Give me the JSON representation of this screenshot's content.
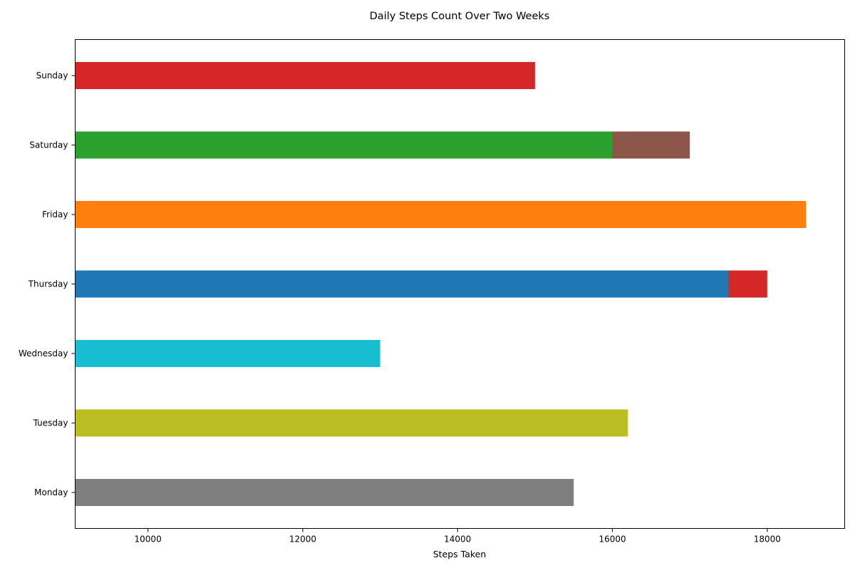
{
  "chart_data": {
    "type": "bar",
    "orientation": "horizontal",
    "title": "Daily Steps Count Over Two Weeks",
    "xlabel": "Steps Taken",
    "ylabel": "",
    "xlim": [
      9060,
      19000
    ],
    "xticks": [
      10000,
      12000,
      14000,
      16000,
      18000
    ],
    "grid": false,
    "legend": "none",
    "categories": [
      "Monday",
      "Tuesday",
      "Wednesday",
      "Thursday",
      "Friday",
      "Saturday",
      "Sunday"
    ],
    "bars": [
      {
        "category": "Monday",
        "value": 15500,
        "color": "#7f7f7f"
      },
      {
        "category": "Tuesday",
        "value": 16200,
        "color": "#bcbd22"
      },
      {
        "category": "Wednesday",
        "value": 13000,
        "color": "#17becf"
      },
      {
        "category": "Thursday",
        "value": 18000,
        "color": "#d62728"
      },
      {
        "category": "Thursday",
        "value": 17500,
        "color": "#1f77b4"
      },
      {
        "category": "Friday",
        "value": 18500,
        "color": "#ff7f0e"
      },
      {
        "category": "Saturday",
        "value": 17000,
        "color": "#8c564b"
      },
      {
        "category": "Saturday",
        "value": 16000,
        "color": "#2ca02c"
      },
      {
        "category": "Sunday",
        "value": 15000,
        "color": "#d62728"
      }
    ]
  }
}
